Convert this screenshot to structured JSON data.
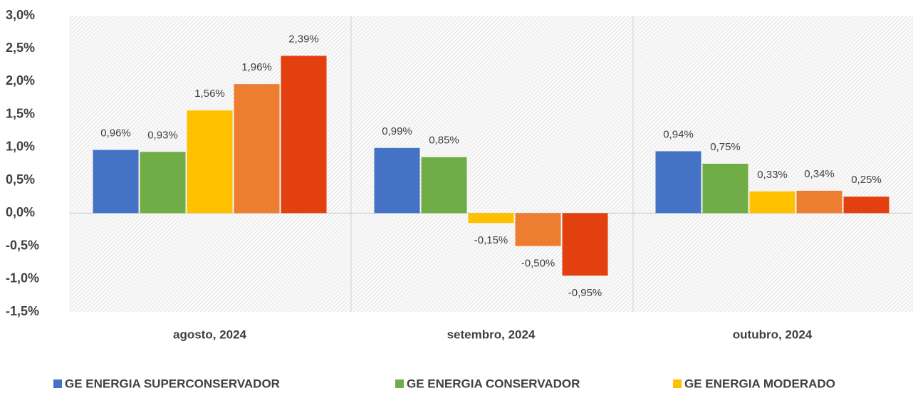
{
  "chart_data": {
    "type": "bar",
    "categories": [
      "agosto, 2024",
      "setembro, 2024",
      "outubro, 2024"
    ],
    "series": [
      {
        "name": "GE ENERGIA SUPERCONSERVADOR",
        "color": "#4472c4",
        "values": [
          0.96,
          0.99,
          0.94
        ],
        "value_labels": [
          "0,96%",
          "0,99%",
          "0,94%"
        ]
      },
      {
        "name": "GE ENERGIA CONSERVADOR",
        "color": "#70ad47",
        "values": [
          0.93,
          0.85,
          0.75
        ],
        "value_labels": [
          "0,93%",
          "0,85%",
          "0,75%"
        ]
      },
      {
        "name": "GE ENERGIA MODERADO",
        "color": "#ffc000",
        "values": [
          1.56,
          -0.15,
          0.33
        ],
        "value_labels": [
          "1,56%",
          "-0,15%",
          "0,33%"
        ]
      },
      {
        "color": "#ed7d31",
        "values": [
          1.96,
          -0.5,
          0.34
        ],
        "value_labels": [
          "1,96%",
          "-0,50%",
          "0,34%"
        ]
      },
      {
        "color": "#e2400f",
        "values": [
          2.39,
          -0.95,
          0.25
        ],
        "value_labels": [
          "2,39%",
          "-0,95%",
          "0,25%"
        ]
      }
    ],
    "ylim": [
      -1.5,
      3
    ],
    "yticks": [
      {
        "value": -1.5,
        "label": "-1,5%"
      },
      {
        "value": -1,
        "label": "-1,0%"
      },
      {
        "value": -0.5,
        "label": "-0,5%"
      },
      {
        "value": 0,
        "label": "0,0%"
      },
      {
        "value": 0.5,
        "label": "0,5%"
      },
      {
        "value": 1,
        "label": "1,0%"
      },
      {
        "value": 1.5,
        "label": "1,5%"
      },
      {
        "value": 2,
        "label": "2,0%"
      },
      {
        "value": 2.5,
        "label": "2,5%"
      },
      {
        "value": 3,
        "label": "3,0%"
      }
    ],
    "grid": false,
    "legend": "bottom"
  }
}
